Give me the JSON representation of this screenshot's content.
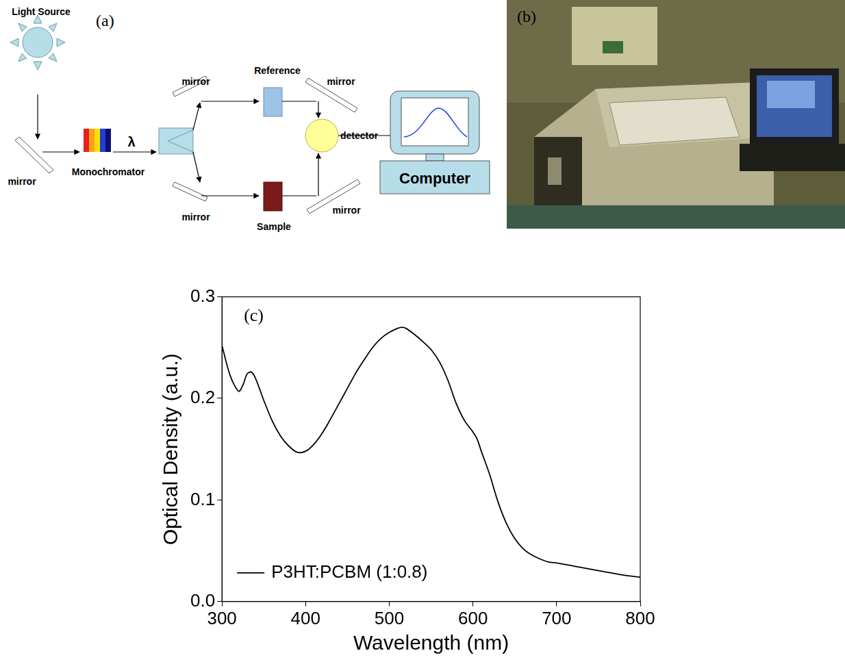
{
  "diagram": {
    "panel_label": "(a)",
    "labels": {
      "light_source": "Light Source",
      "monochromator": "Monochromator",
      "wavelength": "λ",
      "reference": "Reference",
      "sample": "Sample",
      "detector": "detector",
      "computer": "Computer",
      "mirrors": [
        "mirror",
        "mirror",
        "mirror",
        "mirror",
        "mirror"
      ]
    }
  },
  "photo": {
    "panel_label": "(b)"
  },
  "chart_data": {
    "type": "line",
    "panel_label": "(c)",
    "xlabel": "Wavelength (nm)",
    "ylabel": "Optical Density (a.u.)",
    "x": [
      300,
      310,
      320,
      325,
      330,
      335,
      340,
      350,
      360,
      370,
      380,
      390,
      400,
      410,
      420,
      430,
      440,
      450,
      460,
      470,
      480,
      490,
      500,
      510,
      515,
      520,
      530,
      540,
      550,
      560,
      570,
      580,
      590,
      600,
      605,
      610,
      620,
      630,
      640,
      650,
      660,
      670,
      680,
      690,
      700,
      720,
      740,
      760,
      780,
      800
    ],
    "series": [
      {
        "name": "P3HT:PCBM (1:0.8)",
        "color": "#000000",
        "values": [
          0.252,
          0.222,
          0.207,
          0.213,
          0.224,
          0.226,
          0.22,
          0.198,
          0.178,
          0.163,
          0.153,
          0.147,
          0.148,
          0.155,
          0.166,
          0.18,
          0.195,
          0.21,
          0.225,
          0.238,
          0.25,
          0.259,
          0.265,
          0.269,
          0.27,
          0.269,
          0.263,
          0.256,
          0.248,
          0.236,
          0.218,
          0.195,
          0.178,
          0.167,
          0.16,
          0.148,
          0.125,
          0.098,
          0.077,
          0.062,
          0.052,
          0.046,
          0.042,
          0.039,
          0.038,
          0.035,
          0.032,
          0.029,
          0.026,
          0.024
        ]
      }
    ],
    "xlim": [
      300,
      800
    ],
    "xticks": [
      300,
      400,
      500,
      600,
      700,
      800
    ],
    "ylim": [
      0,
      0.3
    ],
    "yticks": [
      {
        "value": 0,
        "label": "0.0"
      },
      0.1,
      0.2,
      0.3
    ],
    "legend": "lower left",
    "grid": false
  }
}
